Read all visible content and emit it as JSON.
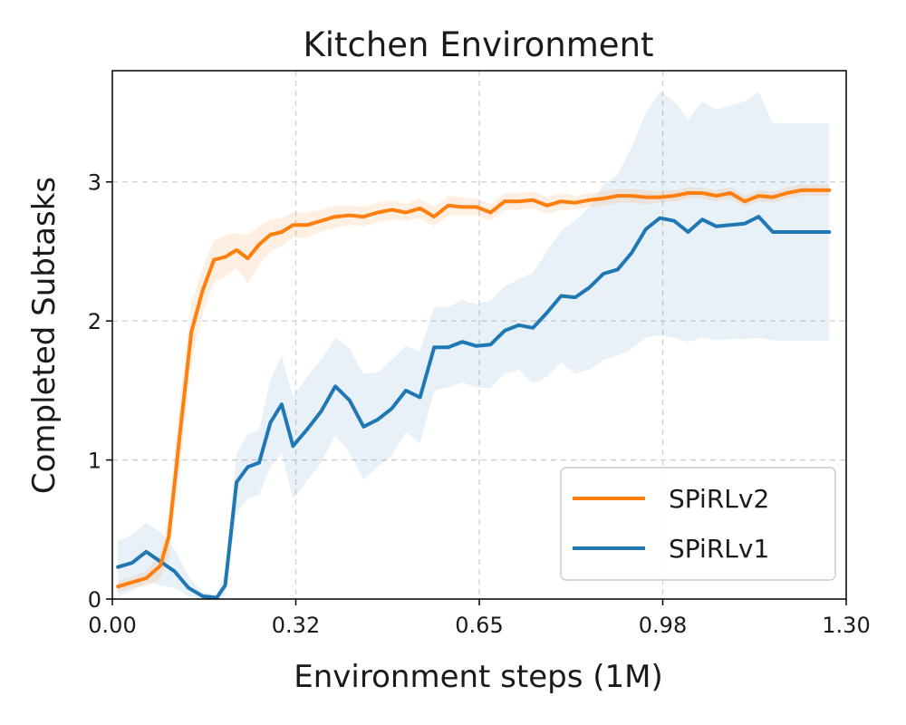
{
  "chart_data": {
    "type": "line",
    "title": "Kitchen Environment",
    "xlabel": "Environment steps (1M)",
    "ylabel": "Completed Subtasks",
    "xlim": [
      0,
      1.3
    ],
    "ylim": [
      0,
      3.8
    ],
    "xticks": [
      0.0,
      0.325,
      0.65,
      0.975,
      1.3
    ],
    "xtick_labels": [
      "0.00",
      "0.32",
      "0.65",
      "0.98",
      "1.30"
    ],
    "yticks": [
      0,
      1,
      2,
      3
    ],
    "ytick_labels": [
      "0",
      "1",
      "2",
      "3"
    ],
    "grid": true,
    "legend_position": "lower-right",
    "series": [
      {
        "name": "SPiRLv2",
        "color": "#ff7f0e",
        "x": [
          0.01,
          0.035,
          0.06,
          0.085,
          0.1,
          0.12,
          0.14,
          0.16,
          0.18,
          0.2,
          0.22,
          0.24,
          0.26,
          0.28,
          0.3,
          0.32,
          0.345,
          0.37,
          0.395,
          0.42,
          0.445,
          0.47,
          0.495,
          0.52,
          0.545,
          0.57,
          0.595,
          0.62,
          0.645,
          0.67,
          0.695,
          0.72,
          0.745,
          0.77,
          0.795,
          0.82,
          0.845,
          0.87,
          0.895,
          0.92,
          0.945,
          0.97,
          0.995,
          1.02,
          1.045,
          1.07,
          1.095,
          1.12,
          1.145,
          1.17,
          1.195,
          1.22,
          1.245,
          1.27
        ],
        "y": [
          0.09,
          0.12,
          0.15,
          0.24,
          0.45,
          1.2,
          1.92,
          2.22,
          2.44,
          2.46,
          2.51,
          2.45,
          2.55,
          2.62,
          2.64,
          2.69,
          2.69,
          2.72,
          2.75,
          2.76,
          2.75,
          2.78,
          2.8,
          2.78,
          2.81,
          2.75,
          2.83,
          2.82,
          2.82,
          2.78,
          2.86,
          2.86,
          2.87,
          2.83,
          2.86,
          2.85,
          2.87,
          2.88,
          2.9,
          2.9,
          2.89,
          2.89,
          2.9,
          2.92,
          2.92,
          2.9,
          2.92,
          2.86,
          2.9,
          2.89,
          2.92,
          2.94,
          2.94,
          2.94
        ],
        "lower": [
          0.05,
          0.08,
          0.09,
          0.15,
          0.3,
          0.95,
          1.7,
          2.05,
          2.28,
          2.32,
          2.38,
          2.27,
          2.4,
          2.5,
          2.54,
          2.6,
          2.6,
          2.64,
          2.67,
          2.69,
          2.68,
          2.71,
          2.73,
          2.72,
          2.74,
          2.68,
          2.76,
          2.76,
          2.76,
          2.72,
          2.8,
          2.8,
          2.81,
          2.77,
          2.8,
          2.8,
          2.82,
          2.83,
          2.85,
          2.85,
          2.84,
          2.85,
          2.86,
          2.88,
          2.88,
          2.86,
          2.88,
          2.82,
          2.86,
          2.85,
          2.88,
          2.9,
          2.9,
          2.9
        ],
        "upper": [
          0.13,
          0.16,
          0.2,
          0.32,
          0.6,
          1.45,
          2.12,
          2.38,
          2.58,
          2.62,
          2.63,
          2.62,
          2.68,
          2.73,
          2.74,
          2.78,
          2.78,
          2.8,
          2.83,
          2.83,
          2.82,
          2.85,
          2.87,
          2.84,
          2.88,
          2.82,
          2.9,
          2.89,
          2.88,
          2.84,
          2.92,
          2.92,
          2.93,
          2.89,
          2.92,
          2.9,
          2.92,
          2.93,
          2.95,
          2.95,
          2.94,
          2.93,
          2.94,
          2.96,
          2.96,
          2.94,
          2.96,
          2.9,
          2.94,
          2.93,
          2.96,
          2.98,
          2.98,
          2.98
        ]
      },
      {
        "name": "SPiRLv1",
        "color": "#1f77b4",
        "x": [
          0.01,
          0.035,
          0.06,
          0.085,
          0.11,
          0.135,
          0.16,
          0.185,
          0.2,
          0.22,
          0.24,
          0.26,
          0.28,
          0.3,
          0.32,
          0.345,
          0.37,
          0.395,
          0.42,
          0.445,
          0.47,
          0.495,
          0.52,
          0.545,
          0.57,
          0.595,
          0.62,
          0.645,
          0.67,
          0.695,
          0.72,
          0.745,
          0.77,
          0.795,
          0.82,
          0.845,
          0.87,
          0.895,
          0.92,
          0.945,
          0.97,
          0.995,
          1.02,
          1.045,
          1.07,
          1.095,
          1.12,
          1.145,
          1.17,
          1.195,
          1.22,
          1.245,
          1.27
        ],
        "y": [
          0.23,
          0.26,
          0.34,
          0.27,
          0.2,
          0.08,
          0.02,
          0.01,
          0.1,
          0.84,
          0.95,
          0.98,
          1.27,
          1.4,
          1.1,
          1.22,
          1.35,
          1.53,
          1.43,
          1.24,
          1.29,
          1.37,
          1.5,
          1.45,
          1.81,
          1.81,
          1.85,
          1.82,
          1.83,
          1.93,
          1.97,
          1.95,
          2.06,
          2.18,
          2.17,
          2.24,
          2.34,
          2.37,
          2.49,
          2.66,
          2.74,
          2.72,
          2.64,
          2.73,
          2.68,
          2.69,
          2.7,
          2.75,
          2.64,
          2.64,
          2.64,
          2.64,
          2.64
        ],
        "lower": [
          0.02,
          0.06,
          0.12,
          0.1,
          0.08,
          0.02,
          0.0,
          0.0,
          0.02,
          0.62,
          0.72,
          0.75,
          0.95,
          1.05,
          0.72,
          0.85,
          0.98,
          1.18,
          1.05,
          0.86,
          0.95,
          1.03,
          1.2,
          1.12,
          1.5,
          1.52,
          1.56,
          1.52,
          1.52,
          1.62,
          1.65,
          1.55,
          1.6,
          1.7,
          1.62,
          1.65,
          1.72,
          1.75,
          1.8,
          1.88,
          1.9,
          1.88,
          1.85,
          1.88,
          1.86,
          1.87,
          1.87,
          1.88,
          1.86,
          1.86,
          1.86,
          1.86,
          1.86
        ],
        "upper": [
          0.42,
          0.46,
          0.55,
          0.48,
          0.36,
          0.16,
          0.05,
          0.03,
          0.2,
          1.05,
          1.18,
          1.22,
          1.58,
          1.75,
          1.45,
          1.6,
          1.72,
          1.88,
          1.8,
          1.62,
          1.63,
          1.72,
          1.82,
          1.78,
          2.1,
          2.1,
          2.15,
          2.12,
          2.15,
          2.25,
          2.3,
          2.35,
          2.5,
          2.65,
          2.72,
          2.82,
          2.98,
          3.05,
          3.25,
          3.5,
          3.65,
          3.58,
          3.45,
          3.58,
          3.52,
          3.55,
          3.58,
          3.65,
          3.42,
          3.42,
          3.42,
          3.42,
          3.42
        ]
      }
    ]
  }
}
